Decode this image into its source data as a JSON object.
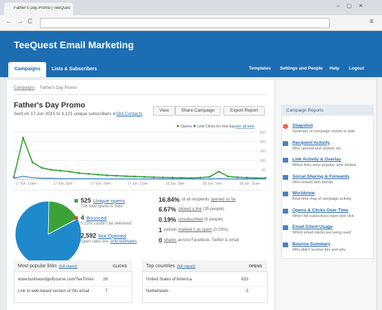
{
  "browser": {
    "tab_title": "Father's Day Promo | TeeQuest"
  },
  "header": {
    "title": "TeeQuest Email Marketing",
    "nav_left": [
      "Campaigns",
      "Lists & Subscribers"
    ],
    "nav_right": [
      "Templates",
      "Settings and People",
      "Help",
      "Logout"
    ]
  },
  "breadcrumb": [
    "Campaigns",
    "›",
    "Father's Day Promo"
  ],
  "campaign": {
    "title": "Father's Day Promo",
    "subtitle": "Sent on 17 Jun 2015 to 3,121 unique subscribers in",
    "list_link": "Old Contacts",
    "buttons": [
      "View",
      "Share Campaign",
      "Export Report"
    ]
  },
  "chart": {
    "type": "line",
    "legend_link": "see all time",
    "categories": [
      null,
      "17 Jun, 11am",
      null,
      null,
      null,
      "17 Jun, 3pm",
      null,
      null,
      null,
      "17 Jun, 7pm",
      null,
      null,
      null,
      "17 Jun, 11pm",
      null,
      null,
      null,
      "18 Jun, 3am",
      null,
      null,
      null,
      "18 Jun, 7am",
      null,
      null,
      null,
      "18 Jun, 11am",
      null,
      null
    ],
    "series": [
      {
        "name": "Opens",
        "color": "#2ea02e",
        "values": [
          10,
          220,
          90,
          60,
          50,
          45,
          40,
          32,
          28,
          24,
          20,
          18,
          16,
          14,
          12,
          10,
          9,
          8,
          7,
          6,
          8,
          12,
          40,
          14,
          10,
          8,
          6,
          6
        ]
      },
      {
        "name": "Link Clicks for first day",
        "color": "#2f7fc4",
        "values": [
          5,
          15,
          8,
          5,
          4,
          3,
          3,
          2,
          2,
          2,
          1,
          1,
          1,
          1,
          1,
          1,
          1,
          1,
          1,
          1,
          1,
          1,
          3,
          1,
          1,
          1,
          1,
          1
        ]
      }
    ],
    "ylim": [
      0,
      250
    ],
    "yticks": [
      50,
      100,
      150,
      200,
      250
    ],
    "grid": true
  },
  "pie": {
    "type": "pie",
    "values": [
      525,
      4,
      2592
    ],
    "colors": [
      "#3ba336",
      "#e0462a",
      "#1f8acb"
    ]
  },
  "stats_left": [
    {
      "number": "525",
      "label": "Unique opens",
      "sub": "738 total opens to date"
    },
    {
      "number": "4",
      "label": "Bounced",
      "sub": "0.13% couldn't be delivered"
    },
    {
      "number": "2,592",
      "label": "Not Opened",
      "sub": "Open rates are",
      "sub_link": "only estimates"
    }
  ],
  "stats_right": [
    {
      "number": "16.84%",
      "pre": "of all recipients",
      "link": "opened so far",
      "post": ""
    },
    {
      "number": "6.67%",
      "link": "clicked a link",
      "post": "(35 people)"
    },
    {
      "number": "0.19%",
      "link": "unsubscribed",
      "post": "(6 people)"
    },
    {
      "number": "1",
      "pre": "person",
      "link": "marked it as spam",
      "post": "(0.03%)"
    },
    {
      "number": "0",
      "link": "shares",
      "post": "across Facebook, Twitter & email"
    }
  ],
  "tables": [
    {
      "title": "Most popular links",
      "link": "(full report)",
      "column": "CLICKS",
      "rows": [
        [
          "www.bushwoodgolfcourse.com/TeeTimes",
          "28"
        ],
        [
          "Link to web-based version of this email",
          "7"
        ]
      ]
    },
    {
      "title": "Top countries",
      "link": "(full report)",
      "column": "OPENS",
      "rows": [
        [
          "United States of America",
          "633"
        ],
        [
          "Netherlands",
          "3"
        ]
      ]
    }
  ],
  "sidebar": {
    "title": "Campaign Reports",
    "items": [
      {
        "title": "Snapshot",
        "desc": "Summary of campaign results to date"
      },
      {
        "title": "Recipient Activity",
        "desc": "Who opened and clicked, etc"
      },
      {
        "title": "Link Activity & Overlay",
        "desc": "Which links were popular, who clicked"
      },
      {
        "title": "Social Sharing & Forwards",
        "desc": "Who shared with friends"
      },
      {
        "title": "Worldview",
        "desc": "Real-time map of campaign activity"
      },
      {
        "title": "Opens & Clicks Over Time",
        "desc": "When did subscribers open and click"
      },
      {
        "title": "Email Client Usage",
        "desc": "Which email clients are being used"
      },
      {
        "title": "Bounce Summary",
        "desc": "Who didn't receive this and why"
      }
    ]
  }
}
